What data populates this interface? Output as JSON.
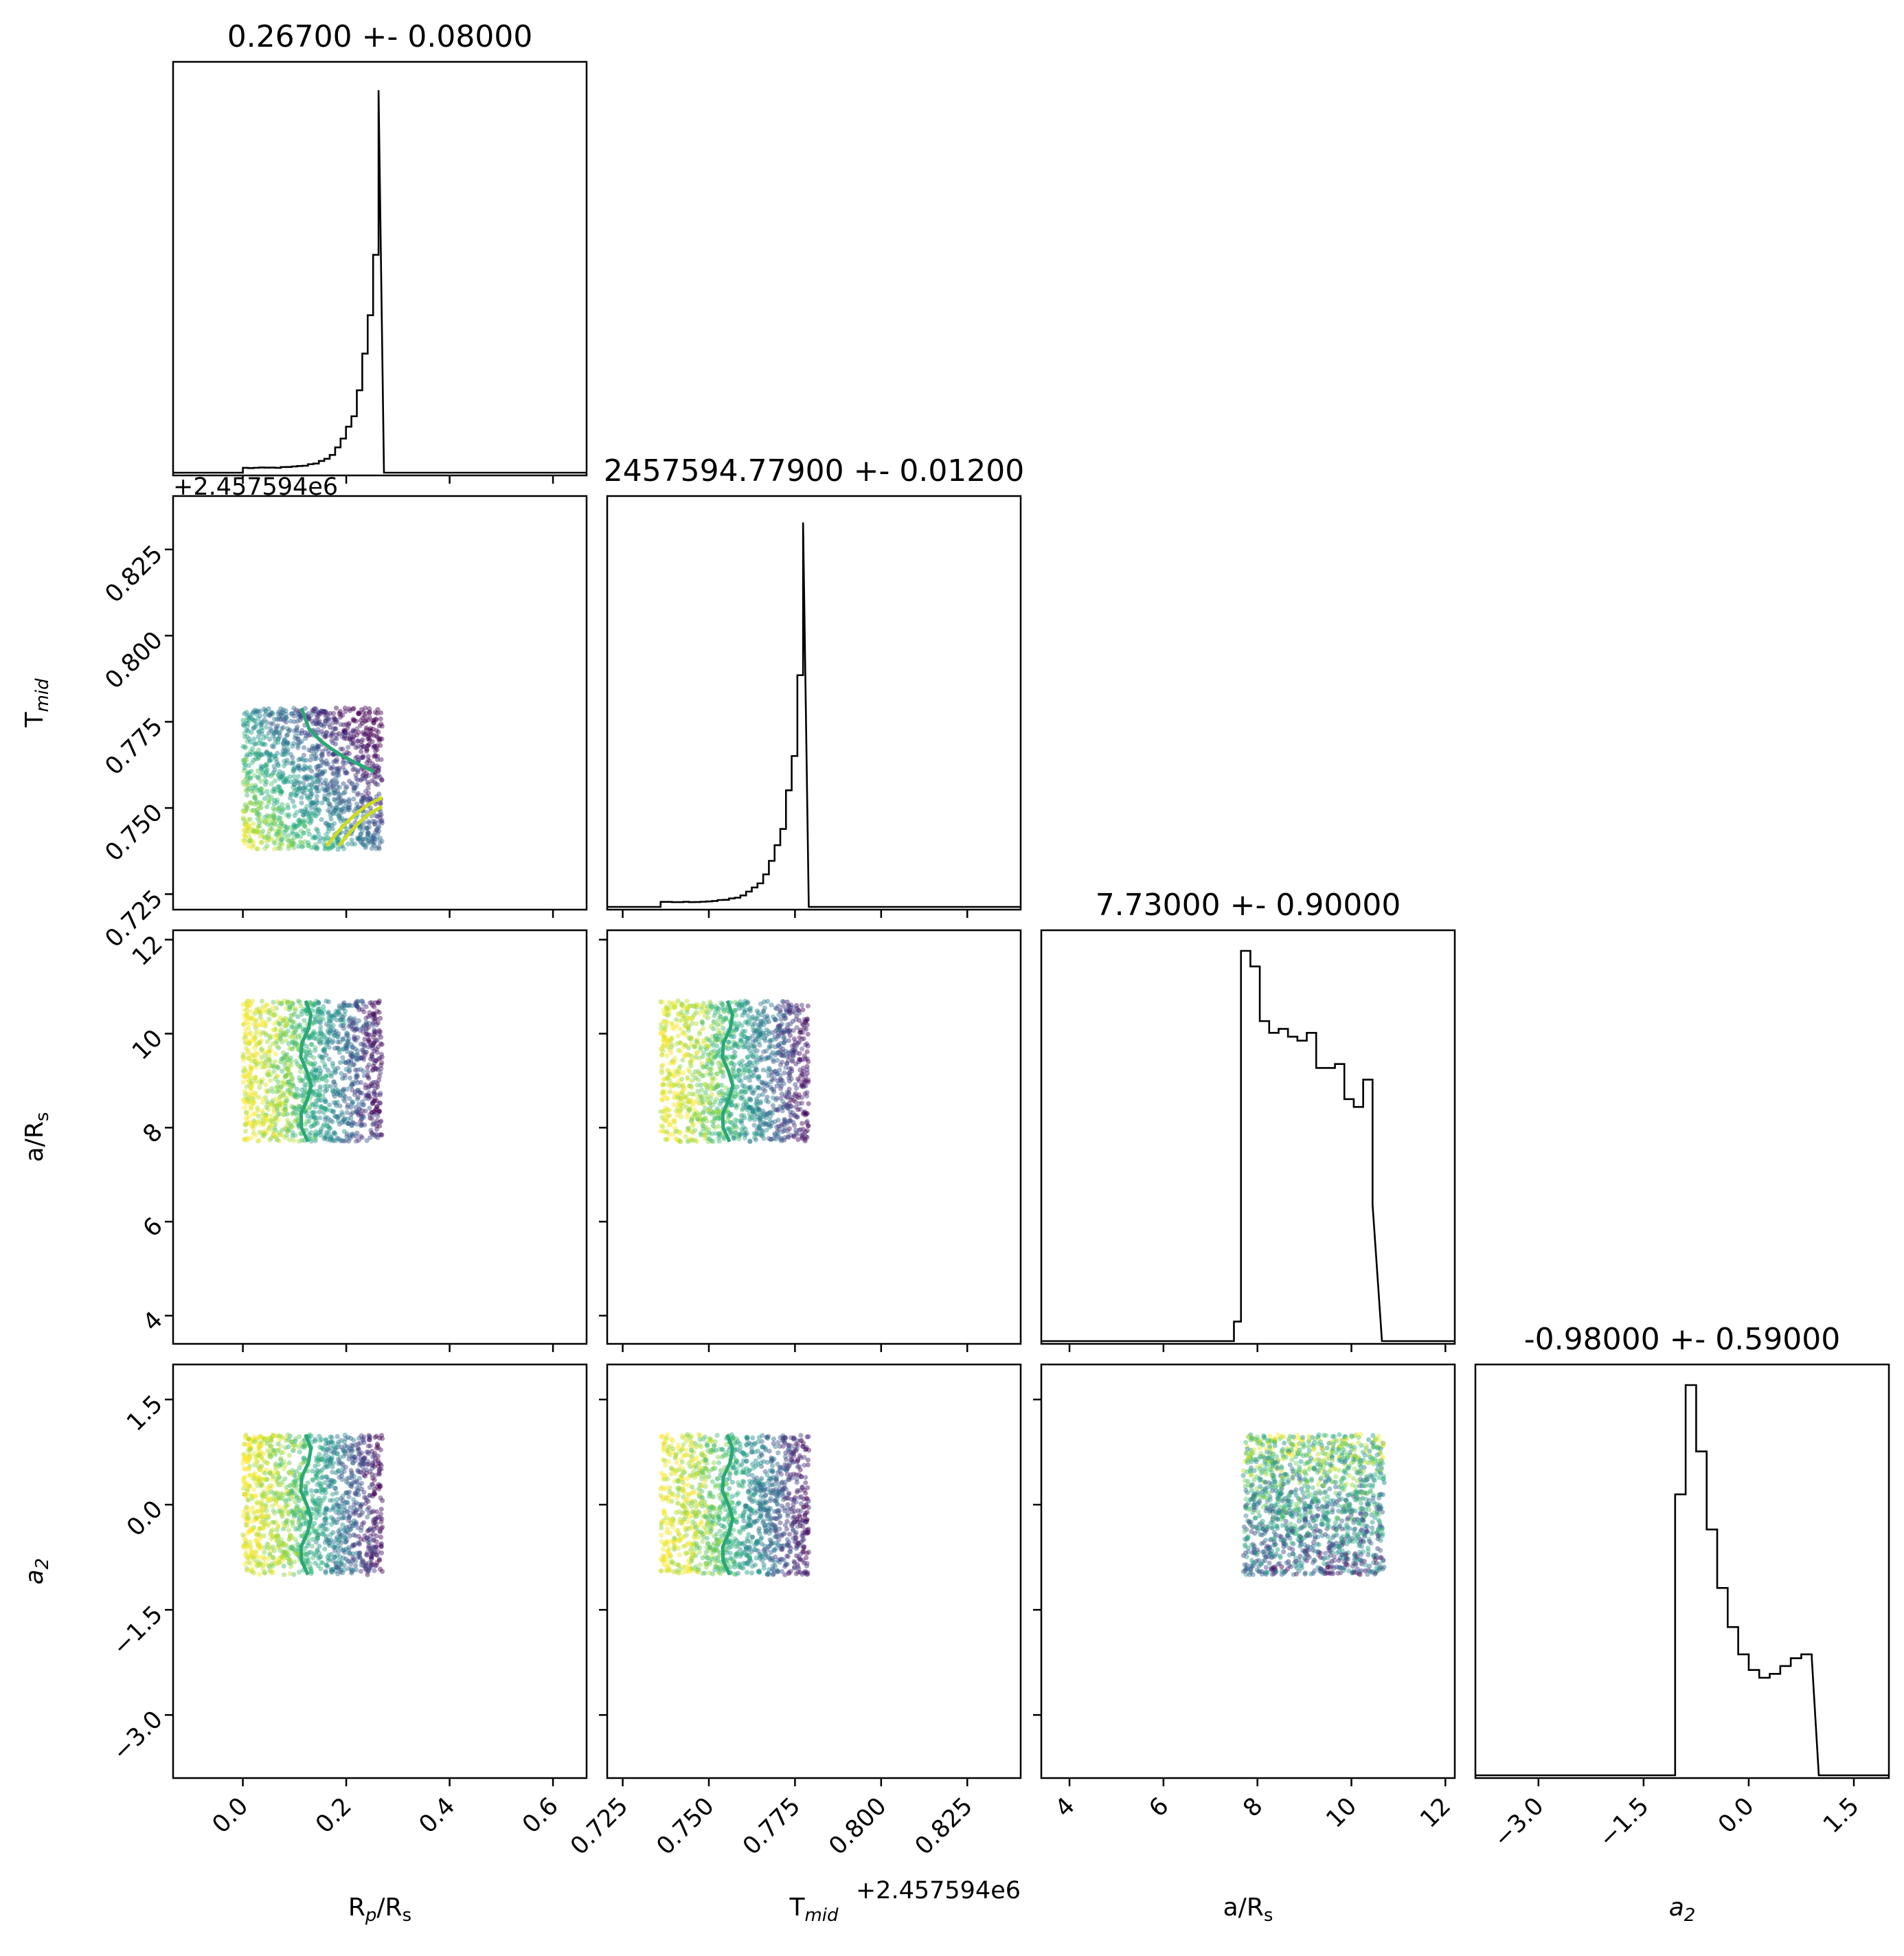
{
  "chart_data": {
    "type": "corner",
    "parameters": [
      {
        "key": "rp",
        "label": "R",
        "sub": "p",
        "label_suffix": "/R",
        "suffix_sub": "s",
        "title": "0.26700 +- 0.08000",
        "range": [
          -0.135,
          0.665
        ],
        "ticks": [
          0.0,
          0.2,
          0.4,
          0.6
        ],
        "tick_labels": [
          "0.0",
          "0.2",
          "0.4",
          "0.6"
        ]
      },
      {
        "key": "tmid",
        "label": "T",
        "sub": "mid",
        "label_suffix": "",
        "suffix_sub": "",
        "title": "2457594.77900 +- 0.01200",
        "offset": "+2.457594e6",
        "range": [
          0.7205,
          0.8405
        ],
        "ticks": [
          0.725,
          0.75,
          0.775,
          0.8,
          0.825
        ],
        "tick_labels": [
          "0.725",
          "0.750",
          "0.775",
          "0.800",
          "0.825"
        ]
      },
      {
        "key": "ars",
        "label": "a/R",
        "sub": "",
        "label_suffix": "",
        "suffix_sub": "s",
        "title": "7.73000 +- 0.90000",
        "range": [
          3.4,
          12.2
        ],
        "ticks": [
          4,
          6,
          8,
          10,
          12
        ],
        "tick_labels": [
          "4",
          "6",
          "8",
          "10",
          "12"
        ]
      },
      {
        "key": "a2",
        "label": "a",
        "sub": "2",
        "label_suffix": "",
        "suffix_sub": "",
        "italic": true,
        "title": "-0.98000 +- 0.59000",
        "range": [
          -3.9,
          2.0
        ],
        "ticks": [
          -3.0,
          -1.5,
          0.0,
          1.5
        ],
        "tick_labels": [
          "−3.0",
          "−1.5",
          "0.0",
          "1.5"
        ]
      }
    ],
    "histograms": {
      "rp": {
        "edges": [
          0.0,
          0.25,
          0.273
        ],
        "peak": 0.265
      },
      "tmid": {
        "edges": [
          0.736,
          0.779
        ],
        "peak": 0.7775
      },
      "ars": {
        "bins": [
          [
            7.5,
            0.05
          ],
          [
            7.65,
            1.0
          ],
          [
            7.85,
            0.96
          ],
          [
            8.05,
            0.82
          ],
          [
            8.25,
            0.79
          ],
          [
            8.45,
            0.8
          ],
          [
            8.65,
            0.78
          ],
          [
            8.85,
            0.77
          ],
          [
            9.05,
            0.79
          ],
          [
            9.25,
            0.7
          ],
          [
            9.45,
            0.7
          ],
          [
            9.65,
            0.71
          ],
          [
            9.85,
            0.62
          ],
          [
            10.05,
            0.6
          ],
          [
            10.25,
            0.67
          ],
          [
            10.45,
            0.35
          ],
          [
            10.65,
            0.0
          ]
        ]
      },
      "a2": {
        "bins": [
          [
            -1.05,
            0.72
          ],
          [
            -0.9,
            1.0
          ],
          [
            -0.75,
            0.83
          ],
          [
            -0.6,
            0.63
          ],
          [
            -0.45,
            0.48
          ],
          [
            -0.3,
            0.38
          ],
          [
            -0.15,
            0.31
          ],
          [
            0.0,
            0.27
          ],
          [
            0.15,
            0.25
          ],
          [
            0.3,
            0.26
          ],
          [
            0.45,
            0.28
          ],
          [
            0.6,
            0.3
          ],
          [
            0.75,
            0.31
          ],
          [
            0.9,
            0.3
          ],
          [
            1.0,
            0.0
          ]
        ]
      }
    },
    "scatter_panels": [
      {
        "x": "rp",
        "y": "tmid",
        "xlim": [
          0.0,
          0.27
        ],
        "ylim": [
          0.738,
          0.779
        ],
        "trend": "x+y"
      },
      {
        "x": "rp",
        "y": "ars",
        "xlim": [
          0.0,
          0.27
        ],
        "ylim": [
          7.7,
          10.7
        ],
        "trend": "x"
      },
      {
        "x": "tmid",
        "y": "ars",
        "xlim": [
          0.736,
          0.779
        ],
        "ylim": [
          7.7,
          10.7
        ],
        "trend": "x"
      },
      {
        "x": "rp",
        "y": "a2",
        "xlim": [
          0.0,
          0.27
        ],
        "ylim": [
          -1.0,
          1.0
        ],
        "trend": "x"
      },
      {
        "x": "tmid",
        "y": "a2",
        "xlim": [
          0.736,
          0.779
        ],
        "ylim": [
          -1.0,
          1.0
        ],
        "trend": "x"
      },
      {
        "x": "ars",
        "y": "a2",
        "xlim": [
          7.7,
          10.7
        ],
        "ylim": [
          -1.0,
          1.0
        ],
        "trend": "ynoise"
      }
    ],
    "colormap": "viridis",
    "colors": {
      "dark": "#440154",
      "teal": "#21918c",
      "green": "#2aa876",
      "yellow": "#fde725",
      "lime": "#cddc1f",
      "axis": "#000000"
    }
  }
}
